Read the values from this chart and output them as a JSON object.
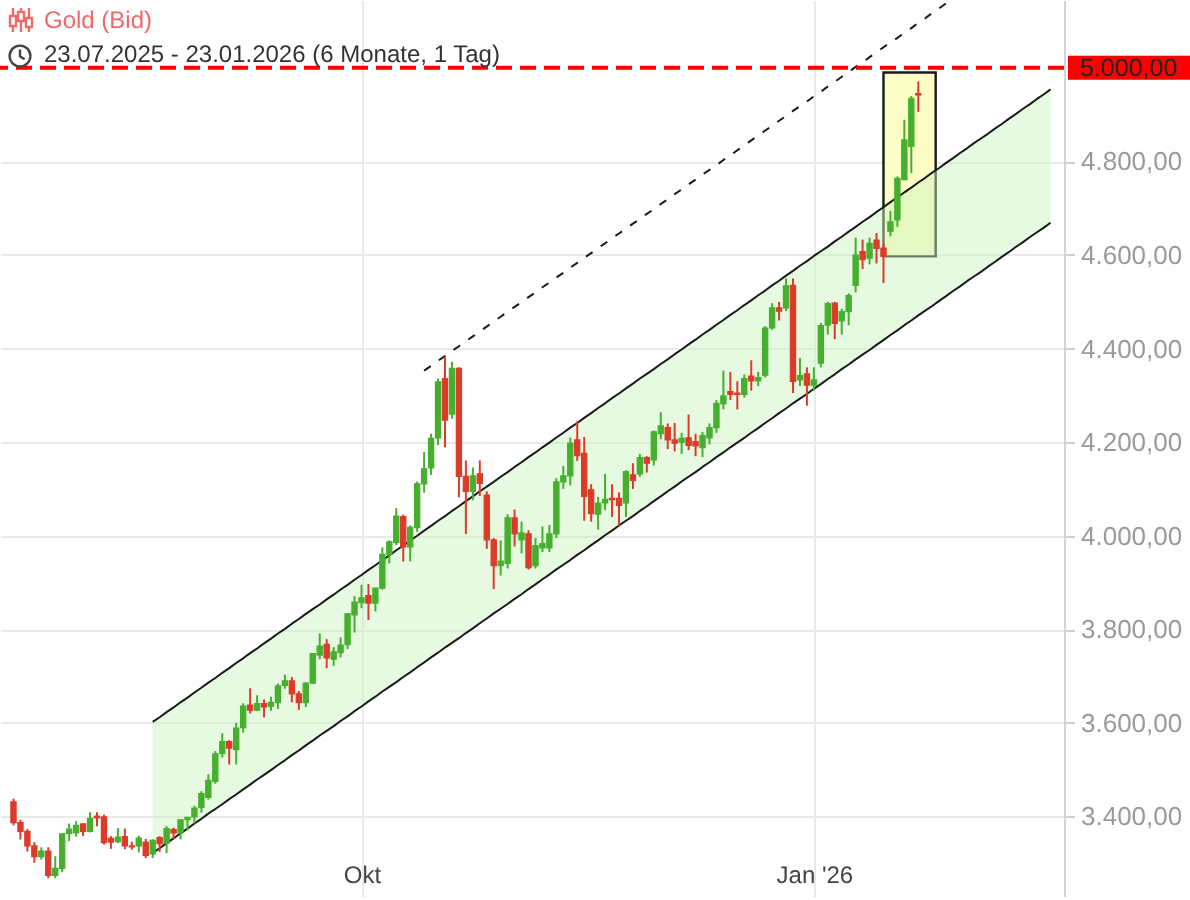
{
  "chart_data": {
    "type": "candlestick",
    "title": "Gold (Bid)",
    "subtitle": "23.07.2025 - 23.01.2026 (6 Monate, 1 Tag)",
    "categories": [
      null,
      null,
      null,
      null,
      null,
      null,
      null,
      null,
      null,
      null,
      null,
      null,
      null,
      null,
      null,
      null,
      null,
      null,
      null,
      null,
      null,
      null,
      null,
      null,
      null,
      null,
      null,
      null,
      null,
      null,
      null,
      null,
      null,
      null,
      null,
      null,
      null,
      null,
      null,
      null,
      null,
      null,
      null,
      null,
      null,
      null,
      null,
      null,
      null,
      null,
      "Okt",
      null,
      null,
      null,
      null,
      null,
      null,
      null,
      null,
      null,
      null,
      null,
      null,
      null,
      null,
      null,
      null,
      null,
      null,
      null,
      null,
      null,
      null,
      null,
      null,
      null,
      null,
      null,
      null,
      null,
      null,
      null,
      null,
      null,
      null,
      null,
      null,
      null,
      null,
      null,
      null,
      null,
      null,
      null,
      null,
      null,
      null,
      null,
      null,
      null,
      null,
      null,
      null,
      null,
      null,
      null,
      null,
      null,
      null,
      null,
      null,
      null,
      null,
      null,
      null,
      "Jan '26",
      null,
      null,
      null,
      null,
      null,
      null,
      null,
      null,
      null,
      null,
      null,
      null,
      null,
      null,
      null,
      null,
      null,
      null,
      null,
      null,
      null,
      null,
      null,
      null,
      null,
      null,
      null,
      null,
      null,
      null,
      null,
      null,
      null,
      null
    ],
    "ohlc": [
      [
        3431,
        3438,
        3381,
        3387
      ],
      [
        3387,
        3393,
        3351,
        3368
      ],
      [
        3368,
        3373,
        3325,
        3337
      ],
      [
        3337,
        3345,
        3301,
        3314
      ],
      [
        3314,
        3334,
        3308,
        3326
      ],
      [
        3326,
        3334,
        3268,
        3274
      ],
      [
        3274,
        3315,
        3268,
        3289
      ],
      [
        3289,
        3363,
        3281,
        3363
      ],
      [
        3363,
        3385,
        3347,
        3373
      ],
      [
        3365,
        3390,
        3357,
        3381
      ],
      [
        3384,
        3385,
        3358,
        3368
      ],
      [
        3368,
        3409,
        3366,
        3396
      ],
      [
        3401,
        3409,
        3379,
        3397
      ],
      [
        3399,
        3404,
        3340,
        3344
      ],
      [
        3353,
        3358,
        3331,
        3345
      ],
      [
        3346,
        3375,
        3343,
        3356
      ],
      [
        3357,
        3374,
        3330,
        3337
      ],
      [
        3337,
        3346,
        3329,
        3335
      ],
      [
        3337,
        3359,
        3323,
        3354
      ],
      [
        3345,
        3352,
        3311,
        3317
      ],
      [
        3320,
        3351,
        3311,
        3349
      ],
      [
        3355,
        3358,
        3324,
        3342
      ],
      [
        3343,
        3379,
        3322,
        3374
      ],
      [
        3372,
        3376,
        3352,
        3365
      ],
      [
        3365,
        3394,
        3351,
        3393
      ],
      [
        3393,
        3399,
        3370,
        3398
      ],
      [
        3399,
        3423,
        3385,
        3418
      ],
      [
        3419,
        3454,
        3408,
        3449
      ],
      [
        3441,
        3490,
        3436,
        3477
      ],
      [
        3475,
        3540,
        3470,
        3534
      ],
      [
        3535,
        3578,
        3526,
        3560
      ],
      [
        3560,
        3563,
        3511,
        3546
      ],
      [
        3543,
        3600,
        3511,
        3589
      ],
      [
        3590,
        3642,
        3579,
        3636
      ],
      [
        3638,
        3674,
        3620,
        3627
      ],
      [
        3627,
        3659,
        3625,
        3641
      ],
      [
        3641,
        3650,
        3612,
        3634
      ],
      [
        3635,
        3656,
        3626,
        3644
      ],
      [
        3643,
        3684,
        3630,
        3679
      ],
      [
        3680,
        3703,
        3673,
        3690
      ],
      [
        3690,
        3698,
        3644,
        3662
      ],
      [
        3662,
        3668,
        3628,
        3643
      ],
      [
        3643,
        3687,
        3634,
        3685
      ],
      [
        3685,
        3749,
        3683,
        3748
      ],
      [
        3745,
        3791,
        3736,
        3764
      ],
      [
        3768,
        3779,
        3717,
        3739
      ],
      [
        3736,
        3762,
        3722,
        3752
      ],
      [
        3750,
        3783,
        3740,
        3766
      ],
      [
        3767,
        3835,
        3758,
        3833
      ],
      [
        3831,
        3871,
        3793,
        3858
      ],
      [
        3857,
        3895,
        3845,
        3867
      ],
      [
        3872,
        3897,
        3820,
        3856
      ],
      [
        3856,
        3889,
        3838,
        3888
      ],
      [
        3888,
        3975,
        3885,
        3960
      ],
      [
        3960,
        3990,
        3941,
        3987
      ],
      [
        3985,
        4059,
        3980,
        4042
      ],
      [
        4041,
        4045,
        3945,
        3976
      ],
      [
        3976,
        4022,
        3945,
        4018
      ],
      [
        4017,
        4116,
        4008,
        4111
      ],
      [
        4111,
        4179,
        4092,
        4143
      ],
      [
        4145,
        4218,
        4130,
        4208
      ],
      [
        4209,
        4336,
        4194,
        4329
      ],
      [
        4336,
        4381,
        4189,
        4247
      ],
      [
        4260,
        4372,
        4250,
        4358
      ],
      [
        4358,
        4360,
        4082,
        4127
      ],
      [
        4127,
        4161,
        4004,
        4095
      ],
      [
        4095,
        4146,
        4076,
        4128
      ],
      [
        4132,
        4161,
        4085,
        4112
      ],
      [
        4087,
        4095,
        3972,
        3991
      ],
      [
        3991,
        3995,
        3886,
        3936
      ],
      [
        3936,
        3990,
        3915,
        3946
      ],
      [
        3941,
        4046,
        3930,
        4038
      ],
      [
        4038,
        4056,
        3977,
        4004
      ],
      [
        3991,
        4030,
        3962,
        4006
      ],
      [
        4004,
        4012,
        3928,
        3932
      ],
      [
        3936,
        3995,
        3930,
        3979
      ],
      [
        3974,
        4020,
        3965,
        3983
      ],
      [
        3974,
        4023,
        3965,
        4004
      ],
      [
        4004,
        4123,
        3995,
        4115
      ],
      [
        4115,
        4149,
        4100,
        4128
      ],
      [
        4128,
        4210,
        4108,
        4198
      ],
      [
        4205,
        4245,
        4160,
        4171
      ],
      [
        4176,
        4211,
        4032,
        4084
      ],
      [
        4098,
        4110,
        4030,
        4047
      ],
      [
        4046,
        4083,
        4013,
        4070
      ],
      [
        4070,
        4132,
        4055,
        4078
      ],
      [
        4080,
        4110,
        4040,
        4077
      ],
      [
        4080,
        4093,
        4022,
        4065
      ],
      [
        4070,
        4140,
        4040,
        4137
      ],
      [
        4130,
        4155,
        4100,
        4118
      ],
      [
        4132,
        4175,
        4126,
        4167
      ],
      [
        4167,
        4170,
        4135,
        4155
      ],
      [
        4162,
        4225,
        4150,
        4222
      ],
      [
        4218,
        4264,
        4206,
        4235
      ],
      [
        4231,
        4240,
        4185,
        4205
      ],
      [
        4205,
        4241,
        4180,
        4198
      ],
      [
        4200,
        4220,
        4175,
        4208
      ],
      [
        4209,
        4259,
        4183,
        4193
      ],
      [
        4201,
        4218,
        4170,
        4192
      ],
      [
        4188,
        4222,
        4168,
        4214
      ],
      [
        4209,
        4240,
        4195,
        4231
      ],
      [
        4231,
        4290,
        4220,
        4283
      ],
      [
        4282,
        4353,
        4270,
        4299
      ],
      [
        4308,
        4350,
        4290,
        4302
      ],
      [
        4305,
        4330,
        4270,
        4302
      ],
      [
        4302,
        4345,
        4295,
        4336
      ],
      [
        4341,
        4375,
        4310,
        4331
      ],
      [
        4331,
        4350,
        4320,
        4338
      ],
      [
        4343,
        4448,
        4338,
        4444
      ],
      [
        4444,
        4497,
        4440,
        4487
      ],
      [
        4487,
        4500,
        4460,
        4480
      ],
      [
        4487,
        4550,
        4480,
        4534
      ],
      [
        4535,
        4550,
        4305,
        4330
      ],
      [
        4333,
        4380,
        4320,
        4342
      ],
      [
        4346,
        4360,
        4278,
        4322
      ],
      [
        4322,
        4360,
        4310,
        4333
      ],
      [
        4369,
        4455,
        4360,
        4449
      ],
      [
        4450,
        4500,
        4430,
        4496
      ],
      [
        4497,
        4500,
        4420,
        4454
      ],
      [
        4459,
        4485,
        4430,
        4479
      ],
      [
        4479,
        4518,
        4450,
        4513
      ],
      [
        4535,
        4637,
        4520,
        4600
      ],
      [
        4607,
        4633,
        4570,
        4590
      ],
      [
        4593,
        4637,
        4580,
        4625
      ],
      [
        4632,
        4647,
        4582,
        4614
      ],
      [
        4615,
        4625,
        4540,
        4597
      ],
      [
        4651,
        4694,
        4640,
        4671
      ],
      [
        4675,
        4768,
        4660,
        4764
      ],
      [
        4761,
        4889,
        4760,
        4846
      ],
      [
        4832,
        4940,
        4775,
        4935
      ],
      [
        4945,
        4971,
        4906,
        4942
      ],
      null,
      null,
      null,
      null,
      null,
      null,
      null,
      null,
      null,
      null,
      null,
      null,
      null,
      null,
      null,
      null,
      null,
      null,
      null
    ],
    "colors": [
      "#dc3b2a",
      "#dc3b2a",
      "#dc3b2a",
      "#dc3b2a",
      "#46b02e",
      "#dc3b2a",
      "#46b02e",
      "#46b02e",
      "#46b02e",
      "#46b02e",
      "#dc3b2a",
      "#46b02e",
      "#dc3b2a",
      "#dc3b2a",
      "#dc3b2a",
      "#46b02e",
      "#dc3b2a",
      "#dc3b2a",
      "#46b02e",
      "#dc3b2a",
      "#46b02e",
      "#dc3b2a",
      "#46b02e",
      "#dc3b2a",
      "#46b02e",
      "#46b02e",
      "#46b02e",
      "#46b02e",
      "#46b02e",
      "#46b02e",
      "#46b02e",
      "#dc3b2a",
      "#46b02e",
      "#46b02e",
      "#dc3b2a",
      "#46b02e",
      "#dc3b2a",
      "#46b02e",
      "#46b02e",
      "#46b02e",
      "#dc3b2a",
      "#dc3b2a",
      "#46b02e",
      "#46b02e",
      "#46b02e",
      "#dc3b2a",
      "#46b02e",
      "#46b02e",
      "#46b02e",
      "#46b02e",
      "#46b02e",
      "#dc3b2a",
      "#46b02e",
      "#46b02e",
      "#46b02e",
      "#46b02e",
      "#dc3b2a",
      "#46b02e",
      "#46b02e",
      "#46b02e",
      "#46b02e",
      "#46b02e",
      "#dc3b2a",
      "#46b02e",
      "#dc3b2a",
      "#dc3b2a",
      "#46b02e",
      "#dc3b2a",
      "#dc3b2a",
      "#dc3b2a",
      "#46b02e",
      "#46b02e",
      "#dc3b2a",
      "#46b02e",
      "#dc3b2a",
      "#46b02e",
      "#46b02e",
      "#46b02e",
      "#46b02e",
      "#46b02e",
      "#46b02e",
      "#dc3b2a",
      "#dc3b2a",
      "#dc3b2a",
      "#46b02e",
      "#46b02e",
      "#dc3b2a",
      "#dc3b2a",
      "#46b02e",
      "#dc3b2a",
      "#46b02e",
      "#dc3b2a",
      "#46b02e",
      "#46b02e",
      "#dc3b2a",
      "#dc3b2a",
      "#46b02e",
      "#dc3b2a",
      "#dc3b2a",
      "#46b02e",
      "#46b02e",
      "#46b02e",
      "#46b02e",
      "#dc3b2a",
      "#dc3b2a",
      "#46b02e",
      "#dc3b2a",
      "#46b02e",
      "#46b02e",
      "#46b02e",
      "#dc3b2a",
      "#46b02e",
      "#dc3b2a",
      "#46b02e",
      "#dc3b2a",
      "#46b02e",
      "#46b02e",
      "#46b02e",
      "#dc3b2a",
      "#46b02e",
      "#46b02e",
      "#46b02e",
      "#dc3b2a",
      "#46b02e",
      "#dc3b2a",
      "#dc3b2a",
      "#46b02e",
      "#46b02e",
      "#46b02e",
      "#46b02e",
      "#dc3b2a",
      null,
      null,
      null,
      null,
      null,
      null,
      null,
      null,
      null,
      null,
      null,
      null,
      null,
      null,
      null,
      null,
      null,
      null,
      null
    ],
    "series": [
      {
        "type": "line",
        "color": "#1a1a1a",
        "values": [
          null,
          null,
          null,
          null,
          null,
          null,
          null,
          null,
          null,
          null,
          null,
          null,
          null,
          null,
          null,
          null,
          null,
          null,
          null,
          null,
          3602,
          3612,
          3623,
          3633,
          3644,
          3654,
          3665,
          3675,
          3686,
          3696,
          3707,
          3717,
          3728,
          3738,
          3749,
          3759,
          3770,
          3780,
          3791,
          3801,
          3812,
          3822,
          3833,
          3843,
          3853,
          3864,
          3874,
          3885,
          3895,
          3906,
          3916,
          3927,
          3937,
          3948,
          3958,
          3969,
          3979,
          3990,
          4000,
          4011,
          4021,
          4032,
          4042,
          4053,
          4063,
          4074,
          4084,
          4095,
          4105,
          4115,
          4126,
          4136,
          4147,
          4157,
          4168,
          4178,
          4189,
          4199,
          4210,
          4220,
          4231,
          4241,
          4252,
          4262,
          4273,
          4283,
          4294,
          4304,
          4315,
          4325,
          4336,
          4346,
          4356,
          4367,
          4377,
          4388,
          4398,
          4409,
          4419,
          4430,
          4440,
          4451,
          4461,
          4472,
          4482,
          4493,
          4503,
          4514,
          4524,
          4535,
          4545,
          4556,
          4566,
          4577,
          4587,
          4598,
          4608,
          4618,
          4629,
          4639,
          4650,
          4660,
          4671,
          4681,
          4692,
          4702,
          4713,
          4723,
          4734,
          4744,
          4755,
          4765,
          4776,
          4786,
          4797,
          4807,
          4818,
          4828,
          4839,
          4849,
          4859,
          4870,
          4880,
          4891,
          4901,
          4912,
          4922,
          4933,
          4943,
          4954
        ],
        "lower": [
          null,
          null,
          null,
          null,
          null,
          null,
          null,
          null,
          null,
          null,
          null,
          null,
          null,
          null,
          null,
          null,
          null,
          null,
          null,
          null,
          3322,
          3332,
          3343,
          3353,
          3364,
          3374,
          3385,
          3395,
          3406,
          3416,
          3426,
          3437,
          3447,
          3458,
          3468,
          3479,
          3489,
          3499,
          3510,
          3520,
          3531,
          3541,
          3552,
          3562,
          3573,
          3583,
          3593,
          3604,
          3614,
          3625,
          3635,
          3646,
          3656,
          3667,
          3677,
          3687,
          3698,
          3708,
          3719,
          3729,
          3740,
          3750,
          3761,
          3771,
          3781,
          3792,
          3802,
          3813,
          3823,
          3834,
          3844,
          3854,
          3865,
          3875,
          3886,
          3896,
          3907,
          3917,
          3928,
          3938,
          3948,
          3959,
          3969,
          3980,
          3990,
          4001,
          4011,
          4022,
          4032,
          4042,
          4053,
          4063,
          4074,
          4084,
          4095,
          4105,
          4116,
          4126,
          4136,
          4147,
          4157,
          4168,
          4178,
          4189,
          4199,
          4209,
          4220,
          4230,
          4241,
          4251,
          4262,
          4272,
          4283,
          4293,
          4303,
          4314,
          4324,
          4335,
          4345,
          4356,
          4366,
          4377,
          4387,
          4397,
          4408,
          4418,
          4429,
          4439,
          4450,
          4460,
          4471,
          4481,
          4491,
          4502,
          4512,
          4523,
          4533,
          4544,
          4554,
          4564,
          4575,
          4585,
          4596,
          4606,
          4617,
          4627,
          4638,
          4648,
          4658,
          4669
        ],
        "upper": [
          null,
          null,
          null,
          null,
          null,
          null,
          null,
          null,
          null,
          null,
          null,
          null,
          null,
          null,
          null,
          null,
          null,
          null,
          null,
          null,
          3602,
          3612,
          3623,
          3633,
          3644,
          3654,
          3665,
          3675,
          3686,
          3696,
          3707,
          3717,
          3728,
          3738,
          3749,
          3759,
          3770,
          3780,
          3791,
          3801,
          3812,
          3822,
          3833,
          3843,
          3853,
          3864,
          3874,
          3885,
          3895,
          3906,
          3916,
          3927,
          3937,
          3948,
          3958,
          3969,
          3979,
          3990,
          4000,
          4011,
          4021,
          4032,
          4042,
          4053,
          4063,
          4074,
          4084,
          4095,
          4105,
          4115,
          4126,
          4136,
          4147,
          4157,
          4168,
          4178,
          4189,
          4199,
          4210,
          4220,
          4231,
          4241,
          4252,
          4262,
          4273,
          4283,
          4294,
          4304,
          4315,
          4325,
          4336,
          4346,
          4356,
          4367,
          4377,
          4388,
          4398,
          4409,
          4419,
          4430,
          4440,
          4451,
          4461,
          4472,
          4482,
          4493,
          4503,
          4514,
          4524,
          4535,
          4545,
          4556,
          4566,
          4577,
          4587,
          4598,
          4608,
          4618,
          4629,
          4639,
          4650,
          4660,
          4671,
          4681,
          4692,
          4702,
          4713,
          4723,
          4734,
          4744,
          4755,
          4765,
          4776,
          4786,
          4797,
          4807,
          4818,
          4828,
          4839,
          4849,
          4859,
          4870,
          4880,
          4891,
          4901,
          4912,
          4922,
          4933,
          4943,
          4954
        ]
      },
      {
        "type": "line",
        "color": "#1a1a1a",
        "values": [
          null,
          null,
          null,
          null,
          null,
          null,
          null,
          null,
          null,
          null,
          null,
          null,
          null,
          null,
          null,
          null,
          null,
          null,
          null,
          null,
          3322,
          3332,
          3343,
          3353,
          3364,
          3374,
          3385,
          3395,
          3406,
          3416,
          3426,
          3437,
          3447,
          3458,
          3468,
          3479,
          3489,
          3499,
          3510,
          3520,
          3531,
          3541,
          3552,
          3562,
          3573,
          3583,
          3593,
          3604,
          3614,
          3625,
          3635,
          3646,
          3656,
          3667,
          3677,
          3687,
          3698,
          3708,
          3719,
          3729,
          3740,
          3750,
          3761,
          3771,
          3781,
          3792,
          3802,
          3813,
          3823,
          3834,
          3844,
          3854,
          3865,
          3875,
          3886,
          3896,
          3907,
          3917,
          3928,
          3938,
          3948,
          3959,
          3969,
          3980,
          3990,
          4001,
          4011,
          4022,
          4032,
          4042,
          4053,
          4063,
          4074,
          4084,
          4095,
          4105,
          4116,
          4126,
          4136,
          4147,
          4157,
          4168,
          4178,
          4189,
          4199,
          4209,
          4220,
          4230,
          4241,
          4251,
          4262,
          4272,
          4283,
          4293,
          4303,
          4314,
          4324,
          4335,
          4345,
          4356,
          4366,
          4377,
          4387,
          4397,
          4408,
          4418,
          4429,
          4439,
          4450,
          4460,
          4471,
          4481,
          4491,
          4502,
          4512,
          4523,
          4533,
          4544,
          4554,
          4564,
          4575,
          4585,
          4596,
          4606,
          4617,
          4627,
          4638,
          4648,
          4658,
          4669
        ]
      },
      {
        "type": "line",
        "color": "#1a1a1a",
        "line_style": "dashed",
        "values": [
          null,
          null,
          null,
          null,
          null,
          null,
          null,
          null,
          null,
          null,
          null,
          null,
          null,
          null,
          null,
          null,
          null,
          null,
          null,
          null,
          null,
          null,
          null,
          null,
          null,
          null,
          null,
          null,
          null,
          null,
          null,
          null,
          null,
          null,
          null,
          null,
          null,
          null,
          null,
          null,
          null,
          null,
          null,
          null,
          null,
          null,
          null,
          null,
          null,
          null,
          null,
          null,
          null,
          null,
          null,
          null,
          null,
          null,
          null,
          4353,
          4363,
          4374,
          4384,
          4395,
          4405,
          4416,
          4426,
          4437,
          4447,
          4458,
          4468,
          4479,
          4489,
          4499,
          4510,
          4520,
          4531,
          4541,
          4552,
          4562,
          4573,
          4583,
          4594,
          4604,
          4615,
          4625,
          4636,
          4646,
          4656,
          4667,
          4677,
          4688,
          4698,
          4709,
          4719,
          4730,
          4740,
          4751,
          4761,
          4772,
          4782,
          4792,
          4803,
          4813,
          4824,
          4834,
          4845,
          4855,
          4866,
          4876,
          4887,
          4897,
          4908,
          4918,
          4928,
          4939,
          4949,
          4960,
          4970,
          4981,
          4991,
          5002,
          5012,
          5023,
          5033,
          5044,
          5054,
          5064,
          5075,
          5085,
          5096,
          5106,
          5117,
          5127,
          5138,
          null,
          null,
          null,
          null,
          null,
          null,
          null,
          null,
          null,
          null,
          null,
          null,
          null,
          null,
          null
        ]
      }
    ],
    "ref_lines": [
      {
        "axis": "y",
        "value": 5000,
        "label": "5.000,00",
        "color": "#ff0000",
        "line_style": "dashed"
      }
    ],
    "ylim": [
      3230,
      5145
    ],
    "yticks": [
      {
        "value": 3400,
        "label": "3.400,00"
      },
      {
        "value": 3600,
        "label": "3.600,00"
      },
      {
        "value": 3800,
        "label": "3.800,00"
      },
      {
        "value": 4000,
        "label": "4.000,00"
      },
      {
        "value": 4200,
        "label": "4.200,00"
      },
      {
        "value": 4400,
        "label": "4.400,00"
      },
      {
        "value": 4600,
        "label": "4.600,00"
      },
      {
        "value": 4800,
        "label": "4.800,00"
      }
    ],
    "grid": true
  }
}
